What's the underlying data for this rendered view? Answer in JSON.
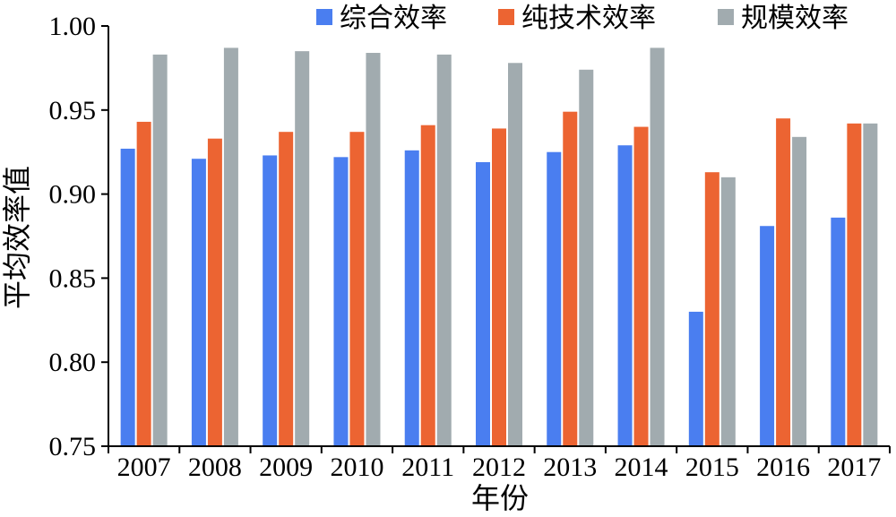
{
  "chart_data": {
    "type": "bar",
    "title": "",
    "xlabel": "年份",
    "ylabel": "平均效率值",
    "categories": [
      "2007",
      "2008",
      "2009",
      "2010",
      "2011",
      "2012",
      "2013",
      "2014",
      "2015",
      "2016",
      "2017"
    ],
    "series": [
      {
        "name": "综合效率",
        "color": "#4a7ef0",
        "values": [
          0.927,
          0.921,
          0.923,
          0.922,
          0.926,
          0.919,
          0.925,
          0.929,
          0.83,
          0.881,
          0.886
        ]
      },
      {
        "name": "纯技术效率",
        "color": "#ec6432",
        "values": [
          0.943,
          0.933,
          0.937,
          0.937,
          0.941,
          0.939,
          0.949,
          0.94,
          0.913,
          0.945,
          0.942
        ]
      },
      {
        "name": "规模效率",
        "color": "#a1abaf",
        "values": [
          0.983,
          0.987,
          0.985,
          0.984,
          0.983,
          0.978,
          0.974,
          0.987,
          0.91,
          0.934,
          0.942
        ]
      }
    ],
    "yticks": [
      "0.75",
      "0.80",
      "0.85",
      "0.90",
      "0.95",
      "1.00"
    ],
    "ylim": [
      0.75,
      1.0
    ],
    "grid": false,
    "legend_position": "top-right"
  }
}
